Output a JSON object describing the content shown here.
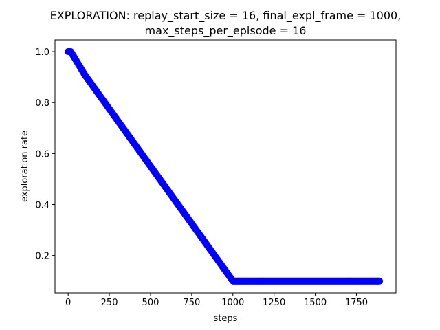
{
  "chart_data": {
    "type": "scatter",
    "title": "EXPLORATION: replay_start_size = 16, final_expl_frame = 1000,",
    "subtitle": "max_steps_per_episode = 16",
    "xlabel": "steps",
    "ylabel": "exploration rate",
    "xlim": [
      -80,
      1990
    ],
    "ylim": [
      0.0535,
      1.046
    ],
    "xticks": [
      0,
      250,
      500,
      750,
      1000,
      1250,
      1500,
      1750
    ],
    "xtick_labels": [
      "0",
      "250",
      "500",
      "750",
      "1000",
      "1250",
      "1500",
      "1750"
    ],
    "yticks": [
      0.2,
      0.4,
      0.6,
      0.8,
      1.0
    ],
    "ytick_labels": [
      "0.2",
      "0.4",
      "0.6",
      "0.8",
      "1.0"
    ],
    "grid": false,
    "series_color": "#0000ff",
    "points": [
      {
        "x": 0,
        "y": 1.0
      },
      {
        "x": 16,
        "y": 1.0
      },
      {
        "x": 100,
        "y": 0.91
      },
      {
        "x": 250,
        "y": 0.775
      },
      {
        "x": 500,
        "y": 0.55
      },
      {
        "x": 750,
        "y": 0.325
      },
      {
        "x": 1000,
        "y": 0.1
      },
      {
        "x": 1250,
        "y": 0.1
      },
      {
        "x": 1500,
        "y": 0.1
      },
      {
        "x": 1750,
        "y": 0.1
      },
      {
        "x": 1890,
        "y": 0.1
      }
    ]
  }
}
